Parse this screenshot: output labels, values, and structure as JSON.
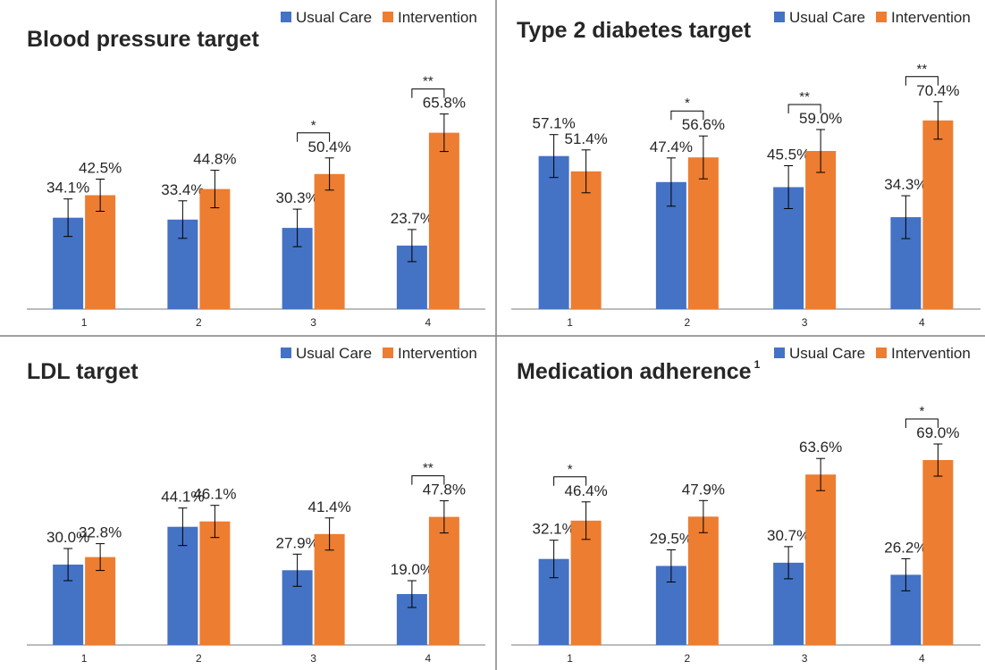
{
  "legend": {
    "usual_label": "Usual Care",
    "intervention_label": "Intervention"
  },
  "colors": {
    "usual": "#4472C4",
    "intervention": "#ED7D31",
    "axis": "#A6A6A6",
    "divider": "#808080",
    "text": "#262626"
  },
  "chart_data": [
    {
      "type": "bar",
      "title": "Blood pressure target",
      "title_superscript": "",
      "categories": [
        "1",
        "2",
        "3",
        "4"
      ],
      "series": [
        {
          "name": "Usual Care",
          "values": [
            34.1,
            33.4,
            30.3,
            23.7
          ],
          "labels": [
            "34.1%",
            "33.4%",
            "30.3%",
            "23.7%"
          ],
          "errors": [
            7,
            7,
            7,
            6
          ]
        },
        {
          "name": "Intervention",
          "values": [
            42.5,
            44.8,
            50.4,
            65.8
          ],
          "labels": [
            "42.5%",
            "44.8%",
            "50.4%",
            "65.8%"
          ],
          "errors": [
            6,
            7,
            6,
            7
          ]
        }
      ],
      "significance": [
        "",
        "",
        "*",
        "**"
      ],
      "ylim": [
        0,
        78
      ],
      "legend_position": "top-right"
    },
    {
      "type": "bar",
      "title": "Type 2 diabetes target",
      "title_superscript": "",
      "categories": [
        "1",
        "2",
        "3",
        "4"
      ],
      "series": [
        {
          "name": "Usual Care",
          "values": [
            57.1,
            47.4,
            45.5,
            34.3
          ],
          "labels": [
            "57.1%",
            "47.4%",
            "45.5%",
            "34.3%"
          ],
          "errors": [
            8,
            9,
            8,
            8
          ]
        },
        {
          "name": "Intervention",
          "values": [
            51.4,
            56.6,
            59.0,
            70.4
          ],
          "labels": [
            "51.4%",
            "56.6%",
            "59.0%",
            "70.4%"
          ],
          "errors": [
            8,
            8,
            8,
            7
          ]
        }
      ],
      "significance": [
        "",
        "*",
        "**",
        "**"
      ],
      "ylim": [
        0,
        78
      ],
      "legend_position": "top-right"
    },
    {
      "type": "bar",
      "title": "LDL target",
      "title_superscript": "",
      "categories": [
        "1",
        "2",
        "3",
        "4"
      ],
      "series": [
        {
          "name": "Usual Care",
          "values": [
            30.0,
            44.1,
            27.9,
            19.0
          ],
          "labels": [
            "30.0%",
            "44.1%",
            "27.9%",
            "19.0%"
          ],
          "errors": [
            6,
            7,
            6,
            5
          ]
        },
        {
          "name": "Intervention",
          "values": [
            32.8,
            46.1,
            41.4,
            47.8
          ],
          "labels": [
            "32.8%",
            "46.1%",
            "41.4%",
            "47.8%"
          ],
          "errors": [
            5,
            6,
            6,
            6
          ]
        }
      ],
      "significance": [
        "",
        "",
        "",
        "**"
      ],
      "ylim": [
        0,
        78
      ],
      "legend_position": "top-right"
    },
    {
      "type": "bar",
      "title": "Medication adherence",
      "title_superscript": "1",
      "categories": [
        "1",
        "2",
        "3",
        "4"
      ],
      "series": [
        {
          "name": "Usual Care",
          "values": [
            32.1,
            29.5,
            30.7,
            26.2
          ],
          "labels": [
            "32.1%",
            "29.5%",
            "30.7%",
            "26.2%"
          ],
          "errors": [
            7,
            6,
            6,
            6
          ]
        },
        {
          "name": "Intervention",
          "values": [
            46.4,
            47.9,
            63.6,
            69.0
          ],
          "labels": [
            "46.4%",
            "47.9%",
            "63.6%",
            "69.0%"
          ],
          "errors": [
            7,
            6,
            6,
            6
          ]
        }
      ],
      "significance": [
        "*",
        "",
        "",
        "*"
      ],
      "ylim": [
        0,
        78
      ],
      "legend_position": "top-right"
    }
  ]
}
